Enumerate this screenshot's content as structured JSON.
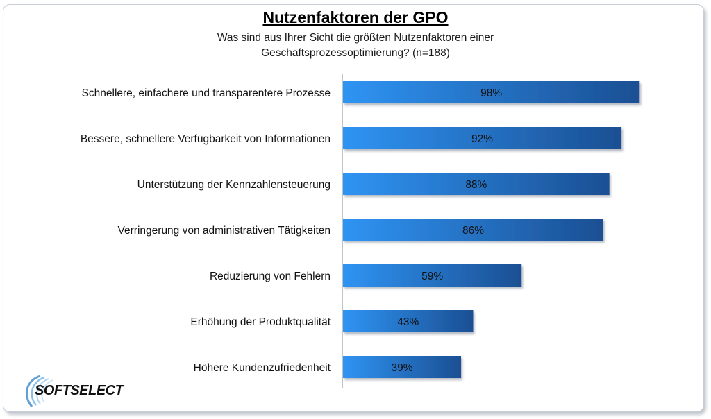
{
  "chart_data": {
    "type": "bar",
    "orientation": "horizontal",
    "title": "Nutzenfaktoren der GPO",
    "subtitle": "Was sind aus Ihrer Sicht die größten Nutzenfaktoren einer Geschäftsprozessoptimierung? (n=188)",
    "categories": [
      "Schnellere, einfachere und transparentere Prozesse",
      "Bessere, schnellere Verfügbarkeit von Informationen",
      "Unterstützung der Kennzahlensteuerung",
      "Verringerung von administrativen Tätigkeiten",
      "Reduzierung von Fehlern",
      "Erhöhung der Produktqualität",
      "Höhere Kundenzufriedenheit"
    ],
    "values": [
      98,
      92,
      88,
      86,
      59,
      43,
      39
    ],
    "data_labels": [
      "98%",
      "92%",
      "88%",
      "86%",
      "59%",
      "43%",
      "39%"
    ],
    "xlim": [
      0,
      100
    ],
    "grid": false,
    "legend": "none",
    "colors": {
      "bar_light": "#2f94f3",
      "bar_dark": "#1b4f93",
      "axis": "#888888"
    }
  },
  "logo": {
    "text": "SOFTSELECT"
  }
}
